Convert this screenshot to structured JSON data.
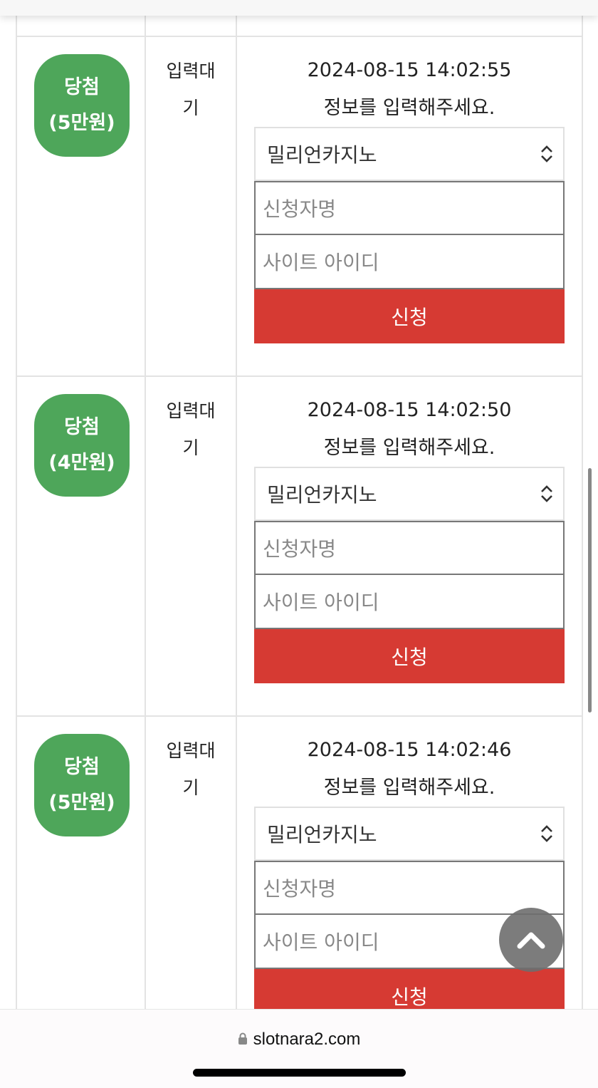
{
  "rows": [
    {
      "badge_title": "당첨",
      "badge_amount": "",
      "status": "",
      "date": "",
      "message": "",
      "select": "",
      "name_ph": "",
      "id_ph": "",
      "submit": ""
    },
    {
      "badge_title": "당첨",
      "badge_amount": "(5만원)",
      "status": "입력대기",
      "date": "2024-08-15 14:02:55",
      "message": "정보를 입력해주세요.",
      "select": "밀리언카지노",
      "name_ph": "신청자명",
      "id_ph": "사이트 아이디",
      "submit": "신청"
    },
    {
      "badge_title": "당첨",
      "badge_amount": "(4만원)",
      "status": "입력대기",
      "date": "2024-08-15 14:02:50",
      "message": "정보를 입력해주세요.",
      "select": "밀리언카지노",
      "name_ph": "신청자명",
      "id_ph": "사이트 아이디",
      "submit": "신청"
    },
    {
      "badge_title": "당첨",
      "badge_amount": "(5만원)",
      "status": "입력대기",
      "date": "2024-08-15 14:02:46",
      "message": "정보를 입력해주세요.",
      "select": "밀리언카지노",
      "name_ph": "신청자명",
      "id_ph": "사이트 아이디",
      "submit": "신청"
    }
  ],
  "browser": {
    "url": "slotnara2.com"
  },
  "colors": {
    "badge": "#4ea65a",
    "submit": "#d63a33"
  }
}
